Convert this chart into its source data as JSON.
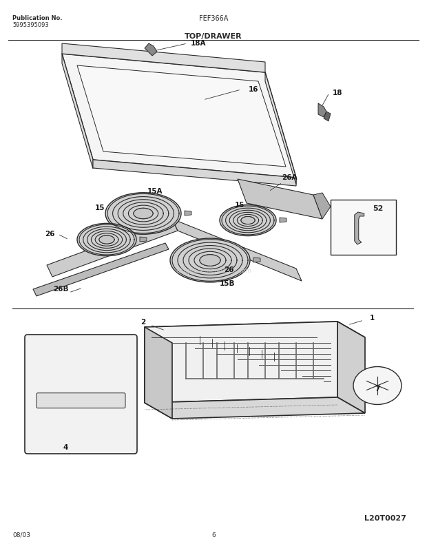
{
  "title": "TOP/DRAWER",
  "pub_no_label": "Publication No.",
  "pub_no": "5995395093",
  "model": "FEF366A",
  "date": "08/03",
  "page": "6",
  "diagram_id": "L20T0027",
  "bg_color": "#ffffff",
  "line_color": "#2a2a2a",
  "label_color": "#1a1a1a",
  "watermark": "eReplacementParts.com"
}
